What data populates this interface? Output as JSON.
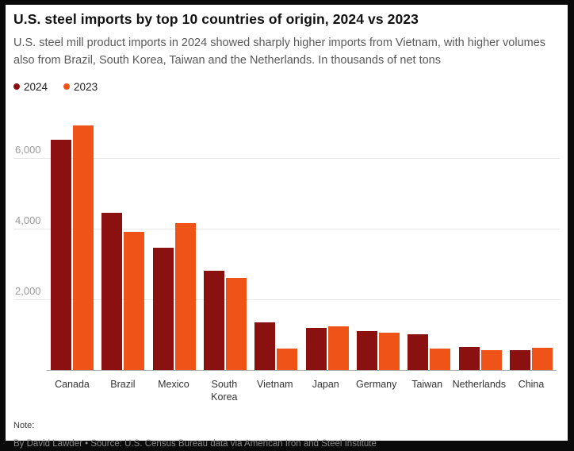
{
  "header": {
    "title": "U.S. steel imports by top 10 countries of origin, 2024 vs 2023",
    "subtitle": "U.S. steel mill product imports in 2024 showed sharply higher imports from Vietnam, with higher volumes also from Brazil, South Korea, Taiwan and the Netherlands. In thousands of net tons"
  },
  "legend": [
    {
      "label": "2024",
      "color": "#8b1110"
    },
    {
      "label": "2023",
      "color": "#f05318"
    }
  ],
  "chart_data": {
    "type": "bar",
    "title": "U.S. steel imports by top 10 countries of origin, 2024 vs 2023",
    "categories": [
      "Canada",
      "Brazil",
      "Mexico",
      "South Korea",
      "Vietnam",
      "Japan",
      "Germany",
      "Taiwan",
      "Netherlands",
      "China"
    ],
    "series": [
      {
        "name": "2024",
        "color": "#8b1110",
        "values": [
          6500,
          4450,
          3450,
          2800,
          1350,
          1200,
          1100,
          1000,
          650,
          550
        ]
      },
      {
        "name": "2023",
        "color": "#f05318",
        "values": [
          6900,
          3900,
          4150,
          2600,
          600,
          1230,
          1050,
          600,
          550,
          620
        ]
      }
    ],
    "xlabel": "",
    "ylabel": "In thousands of net tons",
    "ylim": [
      0,
      7000
    ],
    "yticks": [
      2000,
      4000,
      6000
    ],
    "ytick_labels": [
      "2,000",
      "4,000",
      "6,000"
    ],
    "grid": true,
    "legend_position": "top-left"
  },
  "footer": {
    "note_label": "Note:",
    "byline": "By David Lawder • Source: U.S. Census Bureau data via American Iron and Steel Institute"
  }
}
